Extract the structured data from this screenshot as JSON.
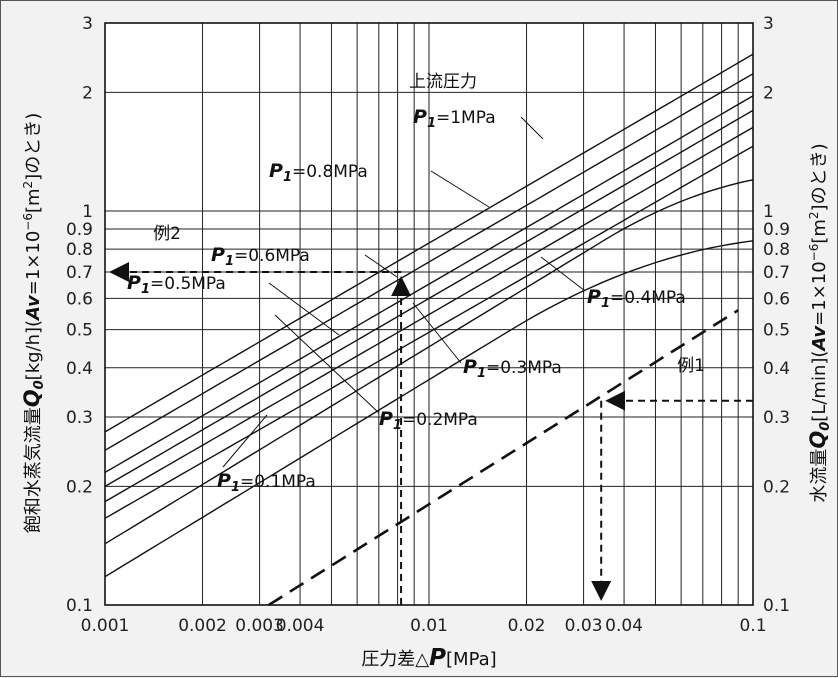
{
  "chart_data": {
    "type": "line",
    "x_scale": "log",
    "y_scale": "log",
    "xlim": [
      0.001,
      0.1
    ],
    "ylim": [
      0.1,
      3
    ],
    "grid": true,
    "xlabel": "圧力差△P[MPa]",
    "ylabel_left": "飽和水蒸気流量Q₀[kg/h](Av=1×10⁻⁶[m²]のとき)",
    "ylabel_right": "水流量Q₀[L/min](Av=1×10⁻⁶[m²]のとき)",
    "x_ticks": [
      {
        "v": 0.001,
        "label": "0.001"
      },
      {
        "v": 0.002,
        "label": "0.002"
      },
      {
        "v": 0.003,
        "label": "0.003"
      },
      {
        "v": 0.004,
        "label": "0.004"
      },
      {
        "v": 0.01,
        "label": "0.01"
      },
      {
        "v": 0.02,
        "label": "0.02"
      },
      {
        "v": 0.03,
        "label": "0.03"
      },
      {
        "v": 0.04,
        "label": "0.04"
      },
      {
        "v": 0.1,
        "label": "0.1"
      }
    ],
    "y_ticks": [
      {
        "v": 0.1,
        "label": "0.1"
      },
      {
        "v": 0.2,
        "label": "0.2"
      },
      {
        "v": 0.3,
        "label": "0.3"
      },
      {
        "v": 0.4,
        "label": "0.4"
      },
      {
        "v": 0.5,
        "label": "0.5"
      },
      {
        "v": 0.6,
        "label": "0.6"
      },
      {
        "v": 0.7,
        "label": "0.7"
      },
      {
        "v": 0.8,
        "label": "0.8"
      },
      {
        "v": 0.9,
        "label": "0.9"
      },
      {
        "v": 1,
        "label": "1"
      },
      {
        "v": 2,
        "label": "2"
      },
      {
        "v": 3,
        "label": "3"
      }
    ],
    "legend_title": "上流圧力",
    "series": [
      {
        "name": "P₁=0.1MPa",
        "x": [
          0.001,
          0.1
        ],
        "y": [
          0.118,
          0.84
        ],
        "saturation_knee": 0.018
      },
      {
        "name": "P₁=0.2MPa",
        "x": [
          0.001,
          0.1
        ],
        "y": [
          0.143,
          1.2
        ],
        "saturation_knee": 0.035
      },
      {
        "name": "P₁=0.3MPa",
        "x": [
          0.001,
          0.1
        ],
        "y": [
          0.166,
          1.46
        ]
      },
      {
        "name": "P₁=0.4MPa",
        "x": [
          0.001,
          0.1
        ],
        "y": [
          0.183,
          1.63
        ]
      },
      {
        "name": "P₁=0.5MPa",
        "x": [
          0.001,
          0.1
        ],
        "y": [
          0.2,
          1.8
        ]
      },
      {
        "name": "P₁=0.6MPa",
        "x": [
          0.001,
          0.1
        ],
        "y": [
          0.217,
          1.96
        ]
      },
      {
        "name": "P₁=0.8MPa",
        "x": [
          0.001,
          0.1
        ],
        "y": [
          0.247,
          2.23
        ]
      },
      {
        "name": "P₁=1MPa",
        "x": [
          0.001,
          0.1
        ],
        "y": [
          0.275,
          2.5
        ]
      },
      {
        "name": "water",
        "dashed": true,
        "x": [
          0.0032,
          0.09
        ],
        "y": [
          0.1,
          0.56
        ]
      }
    ],
    "series_labels": [
      {
        "parts": [
          "P",
          "1",
          "=1MPa"
        ]
      },
      {
        "parts": [
          "P",
          "1",
          "=0.8MPa"
        ]
      },
      {
        "parts": [
          "P",
          "1",
          "=0.6MPa"
        ]
      },
      {
        "parts": [
          "P",
          "1",
          "=0.5MPa"
        ]
      },
      {
        "parts": [
          "P",
          "1",
          "=0.4MPa"
        ]
      },
      {
        "parts": [
          "P",
          "1",
          "=0.3MPa"
        ]
      },
      {
        "parts": [
          "P",
          "1",
          "=0.2MPa"
        ]
      },
      {
        "parts": [
          "P",
          "1",
          "=0.1MPa"
        ]
      }
    ],
    "annotations": [
      {
        "label": "例1",
        "flow_value": 0.33,
        "pressure_value": 0.034
      },
      {
        "label": "例2",
        "flow_value": 0.7,
        "pressure_value": 0.0082
      }
    ],
    "axis_text": {
      "xlabel_main": "圧力差△",
      "xlabel_sym": "P",
      "xlabel_unit": "[MPa]",
      "left_pre": "飽和水蒸気流量",
      "left_sym": "Q",
      "left_sub": "0",
      "left_unit": "[kg/h]",
      "right_pre": "水流量",
      "right_sym": "Q",
      "right_sub": "0",
      "right_unit": "[L/min]",
      "paren_a": "(",
      "av": "Av",
      "paren_b": "=1×10",
      "exp": "−6",
      "paren_c": "[m",
      "sq": "2",
      "paren_d": "]のとき)"
    }
  }
}
